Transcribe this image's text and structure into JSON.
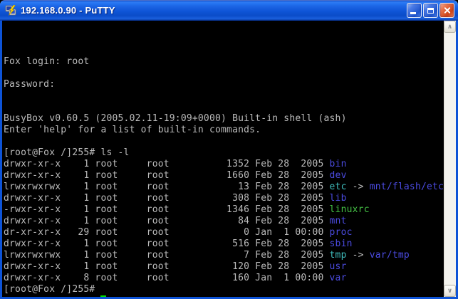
{
  "window": {
    "title": "192.168.0.90 - PuTTY",
    "app_icon": "putty-terminals-icon",
    "controls": {
      "minimize": "minimize",
      "maximize": "maximize",
      "close": "close"
    }
  },
  "scrollbar": {
    "up_glyph": "∧",
    "down_glyph": "∨"
  },
  "terminal": {
    "colors": {
      "background": "#000000",
      "foreground": "#bbbbbb",
      "directory": "#4b4be0",
      "symlink": "#3fbcbc",
      "executable": "#44c044",
      "cursor": "#00dd00"
    },
    "lines": [
      {
        "type": "text",
        "text": "Fox login: root"
      },
      {
        "type": "blank"
      },
      {
        "type": "text",
        "text": "Password:"
      },
      {
        "type": "blank"
      },
      {
        "type": "blank"
      },
      {
        "type": "text",
        "text": "BusyBox v0.60.5 (2005.02.11-19:09+0000) Built-in shell (ash)"
      },
      {
        "type": "text",
        "text": "Enter 'help' for a list of built-in commands."
      },
      {
        "type": "blank"
      },
      {
        "type": "text",
        "text": "[root@Fox /]255# ls -l"
      },
      {
        "type": "ls",
        "perms": "drwxr-xr-x",
        "links": "1",
        "owner": "root",
        "group": "root",
        "size": "1352",
        "date": "Feb 28  2005",
        "name": "bin",
        "name_type": "directory"
      },
      {
        "type": "ls",
        "perms": "drwxr-xr-x",
        "links": "1",
        "owner": "root",
        "group": "root",
        "size": "1660",
        "date": "Feb 28  2005",
        "name": "dev",
        "name_type": "directory"
      },
      {
        "type": "ls",
        "perms": "lrwxrwxrwx",
        "links": "1",
        "owner": "root",
        "group": "root",
        "size": "13",
        "date": "Feb 28  2005",
        "name": "etc",
        "name_type": "symlink",
        "target": "mnt/flash/etc",
        "target_type": "directory"
      },
      {
        "type": "ls",
        "perms": "drwxr-xr-x",
        "links": "1",
        "owner": "root",
        "group": "root",
        "size": "308",
        "date": "Feb 28  2005",
        "name": "lib",
        "name_type": "directory"
      },
      {
        "type": "ls",
        "perms": "-rwxr-xr-x",
        "links": "1",
        "owner": "root",
        "group": "root",
        "size": "1346",
        "date": "Feb 28  2005",
        "name": "linuxrc",
        "name_type": "executable"
      },
      {
        "type": "ls",
        "perms": "drwxr-xr-x",
        "links": "1",
        "owner": "root",
        "group": "root",
        "size": "84",
        "date": "Feb 28  2005",
        "name": "mnt",
        "name_type": "directory"
      },
      {
        "type": "ls",
        "perms": "dr-xr-xr-x",
        "links": "29",
        "owner": "root",
        "group": "root",
        "size": "0",
        "date": "Jan  1 00:00",
        "name": "proc",
        "name_type": "directory"
      },
      {
        "type": "ls",
        "perms": "drwxr-xr-x",
        "links": "1",
        "owner": "root",
        "group": "root",
        "size": "516",
        "date": "Feb 28  2005",
        "name": "sbin",
        "name_type": "directory"
      },
      {
        "type": "ls",
        "perms": "lrwxrwxrwx",
        "links": "1",
        "owner": "root",
        "group": "root",
        "size": "7",
        "date": "Feb 28  2005",
        "name": "tmp",
        "name_type": "symlink",
        "target": "var/tmp",
        "target_type": "directory"
      },
      {
        "type": "ls",
        "perms": "drwxr-xr-x",
        "links": "1",
        "owner": "root",
        "group": "root",
        "size": "120",
        "date": "Feb 28  2005",
        "name": "usr",
        "name_type": "directory"
      },
      {
        "type": "ls",
        "perms": "drwxr-xr-x",
        "links": "8",
        "owner": "root",
        "group": "root",
        "size": "160",
        "date": "Jan  1 00:00",
        "name": "var",
        "name_type": "directory"
      },
      {
        "type": "text",
        "text": "[root@Fox /]255#"
      },
      {
        "type": "prompt",
        "text": "[root@Fox /]255# ",
        "cursor": true
      }
    ]
  }
}
